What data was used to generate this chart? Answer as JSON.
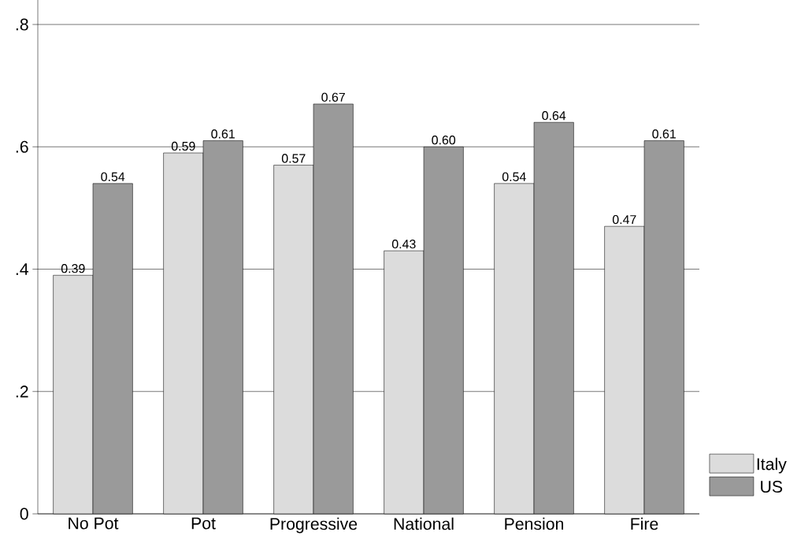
{
  "chart_data": {
    "type": "bar",
    "categories": [
      "No Pot",
      "Pot",
      "Progressive",
      "National",
      "Pension",
      "Fire"
    ],
    "series": [
      {
        "name": "Italy",
        "color": "#dcdcdc",
        "values": [
          0.39,
          0.59,
          0.57,
          0.43,
          0.54,
          0.47
        ],
        "value_labels": [
          "0.39",
          "0.59",
          "0.57",
          "0.43",
          "0.54",
          "0.47"
        ]
      },
      {
        "name": "US",
        "color": "#9a9a9a",
        "values": [
          0.54,
          0.61,
          0.67,
          0.6,
          0.64,
          0.61
        ],
        "value_labels": [
          "0.54",
          "0.61",
          "0.67",
          "0.60",
          "0.64",
          "0.61"
        ]
      }
    ],
    "ylim": [
      0,
      0.84
    ],
    "yticks": [
      {
        "value": 0,
        "label": "0"
      },
      {
        "value": 0.2,
        "label": ".2"
      },
      {
        "value": 0.4,
        "label": ".4"
      },
      {
        "value": 0.6,
        "label": ".6"
      },
      {
        "value": 0.8,
        "label": ".8"
      }
    ],
    "grid": "y",
    "legend": "bottom right"
  }
}
